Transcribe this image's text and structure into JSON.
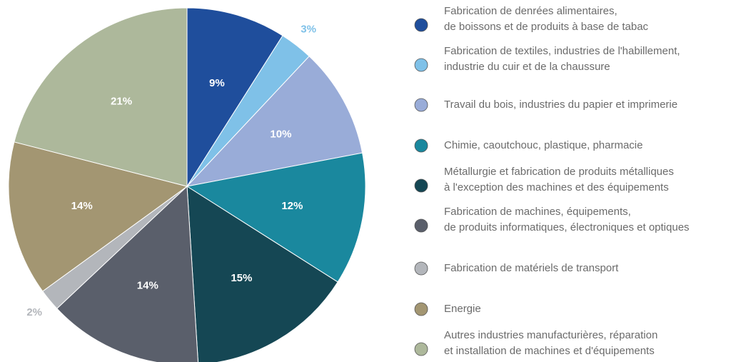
{
  "chart_data": {
    "type": "pie",
    "categories": [
      [
        "Fabrication de denrées alimentaires,",
        "de boissons et de produits à base de tabac"
      ],
      [
        "Fabrication de textiles, industries de l'habillement,",
        "industrie du cuir et de la chaussure"
      ],
      [
        "Travail du bois, industries du papier et imprimerie"
      ],
      [
        "Chimie, caoutchouc, plastique, pharmacie"
      ],
      [
        "Métallurgie et fabrication de produits métalliques",
        "à l'exception des machines et des équipements"
      ],
      [
        "Fabrication de machines, équipements,",
        "de produits informatiques, électroniques et optiques"
      ],
      [
        "Fabrication de matériels de transport"
      ],
      [
        "Energie"
      ],
      [
        "Autres industries manufacturières, réparation",
        "et installation de machines et d'équipements"
      ]
    ],
    "values": [
      9,
      3,
      10,
      12,
      15,
      14,
      2,
      14,
      21
    ],
    "value_labels": [
      "9%",
      "3%",
      "10%",
      "12%",
      "15%",
      "14%",
      "2%",
      "14%",
      "21%"
    ],
    "colors": [
      "#1f4e9c",
      "#7fc1e8",
      "#99acd8",
      "#1a889e",
      "#154754",
      "#5a5f6b",
      "#b3b6bb",
      "#a39672",
      "#adb89b"
    ],
    "legend": "right"
  }
}
